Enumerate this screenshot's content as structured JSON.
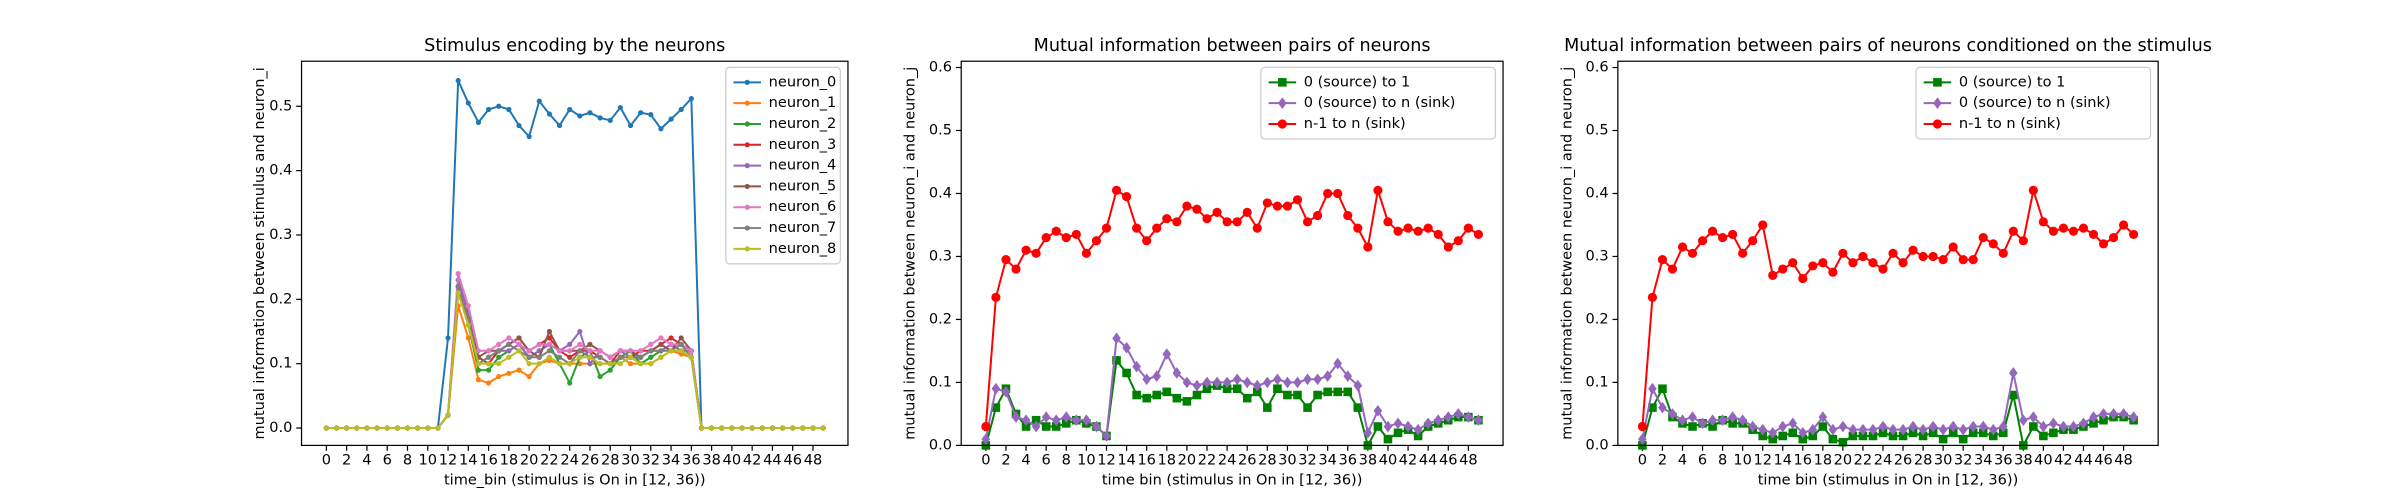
{
  "chart_data": [
    {
      "type": "line",
      "title": "Stimulus encoding by the neurons",
      "xlabel": "time_bin (stimulus is On in [12, 36))",
      "ylabel": "mutual information between stimulus and neuron_i",
      "x": [
        0,
        1,
        2,
        3,
        4,
        5,
        6,
        7,
        8,
        9,
        10,
        11,
        12,
        13,
        14,
        15,
        16,
        17,
        18,
        19,
        20,
        21,
        22,
        23,
        24,
        25,
        26,
        27,
        28,
        29,
        30,
        31,
        32,
        33,
        34,
        35,
        36,
        37,
        38,
        39,
        40,
        41,
        42,
        43,
        44,
        45,
        46,
        47,
        48,
        49
      ],
      "xlim": [
        -2.45,
        51.45
      ],
      "ylim": [
        -0.027,
        0.57
      ],
      "xticks": [
        0,
        2,
        4,
        6,
        8,
        10,
        12,
        14,
        16,
        18,
        20,
        22,
        24,
        26,
        28,
        30,
        32,
        34,
        36,
        38,
        40,
        42,
        44,
        46,
        48
      ],
      "yticks": [
        {
          "value": 0,
          "label": "0.0"
        },
        0.1,
        0.2,
        0.3,
        0.4,
        0.5
      ],
      "legend": "upper right",
      "series": [
        {
          "name": "neuron_0",
          "color": "#1f77b4",
          "marker": ".",
          "values": [
            0,
            0,
            0,
            0,
            0,
            0,
            0,
            0,
            0,
            0,
            0,
            0,
            0.14,
            0.54,
            0.505,
            0.475,
            0.495,
            0.5,
            0.495,
            0.47,
            0.453,
            0.508,
            0.488,
            0.47,
            0.495,
            0.485,
            0.49,
            0.482,
            0.478,
            0.498,
            0.47,
            0.49,
            0.487,
            0.465,
            0.48,
            0.495,
            0.512,
            0,
            0,
            0,
            0,
            0,
            0,
            0,
            0,
            0,
            0,
            0,
            0,
            0
          ]
        },
        {
          "name": "neuron_1",
          "color": "#ff7f0e",
          "marker": ".",
          "values": [
            0,
            0,
            0,
            0,
            0,
            0,
            0,
            0,
            0,
            0,
            0,
            0,
            0.02,
            0.19,
            0.14,
            0.075,
            0.07,
            0.08,
            0.085,
            0.09,
            0.08,
            0.1,
            0.105,
            0.1,
            0.1,
            0.1,
            0.1,
            0.1,
            0.1,
            0.11,
            0.1,
            0.1,
            0.1,
            0.11,
            0.12,
            0.115,
            0.11,
            0,
            0,
            0,
            0,
            0,
            0,
            0,
            0,
            0,
            0,
            0,
            0,
            0
          ]
        },
        {
          "name": "neuron_2",
          "color": "#2ca02c",
          "marker": ".",
          "values": [
            0,
            0,
            0,
            0,
            0,
            0,
            0,
            0,
            0,
            0,
            0,
            0,
            0.02,
            0.22,
            0.16,
            0.09,
            0.09,
            0.11,
            0.12,
            0.13,
            0.11,
            0.12,
            0.13,
            0.1,
            0.07,
            0.11,
            0.12,
            0.08,
            0.09,
            0.11,
            0.12,
            0.1,
            0.11,
            0.12,
            0.13,
            0.12,
            0.11,
            0,
            0,
            0,
            0,
            0,
            0,
            0,
            0,
            0,
            0,
            0,
            0,
            0
          ]
        },
        {
          "name": "neuron_3",
          "color": "#d62728",
          "marker": ".",
          "values": [
            0,
            0,
            0,
            0,
            0,
            0,
            0,
            0,
            0,
            0,
            0,
            0,
            0.02,
            0.21,
            0.17,
            0.11,
            0.1,
            0.12,
            0.13,
            0.14,
            0.12,
            0.13,
            0.14,
            0.12,
            0.11,
            0.12,
            0.12,
            0.11,
            0.1,
            0.12,
            0.11,
            0.12,
            0.12,
            0.13,
            0.14,
            0.13,
            0.12,
            0,
            0,
            0,
            0,
            0,
            0,
            0,
            0,
            0,
            0,
            0,
            0,
            0
          ]
        },
        {
          "name": "neuron_4",
          "color": "#9467bd",
          "marker": ".",
          "values": [
            0,
            0,
            0,
            0,
            0,
            0,
            0,
            0,
            0,
            0,
            0,
            0,
            0.02,
            0.23,
            0.18,
            0.1,
            0.11,
            0.12,
            0.12,
            0.13,
            0.11,
            0.12,
            0.13,
            0.12,
            0.13,
            0.15,
            0.1,
            0.12,
            0.11,
            0.12,
            0.11,
            0.11,
            0.12,
            0.12,
            0.13,
            0.12,
            0.12,
            0,
            0,
            0,
            0,
            0,
            0,
            0,
            0,
            0,
            0,
            0,
            0,
            0
          ]
        },
        {
          "name": "neuron_5",
          "color": "#8c564b",
          "marker": ".",
          "values": [
            0,
            0,
            0,
            0,
            0,
            0,
            0,
            0,
            0,
            0,
            0,
            0,
            0.02,
            0.22,
            0.17,
            0.11,
            0.12,
            0.12,
            0.13,
            0.14,
            0.12,
            0.11,
            0.15,
            0.12,
            0.12,
            0.12,
            0.13,
            0.12,
            0.11,
            0.12,
            0.12,
            0.11,
            0.12,
            0.13,
            0.12,
            0.14,
            0.12,
            0,
            0,
            0,
            0,
            0,
            0,
            0,
            0,
            0,
            0,
            0,
            0,
            0
          ]
        },
        {
          "name": "neuron_6",
          "color": "#e377c2",
          "marker": ".",
          "values": [
            0,
            0,
            0,
            0,
            0,
            0,
            0,
            0,
            0,
            0,
            0,
            0,
            0.02,
            0.24,
            0.19,
            0.12,
            0.12,
            0.13,
            0.14,
            0.13,
            0.12,
            0.13,
            0.13,
            0.12,
            0.12,
            0.13,
            0.12,
            0.12,
            0.11,
            0.12,
            0.12,
            0.12,
            0.13,
            0.14,
            0.13,
            0.13,
            0.12,
            0,
            0,
            0,
            0,
            0,
            0,
            0,
            0,
            0,
            0,
            0,
            0,
            0
          ]
        },
        {
          "name": "neuron_7",
          "color": "#7f7f7f",
          "marker": ".",
          "values": [
            0,
            0,
            0,
            0,
            0,
            0,
            0,
            0,
            0,
            0,
            0,
            0,
            0.02,
            0.22,
            0.17,
            0.1,
            0.11,
            0.12,
            0.13,
            0.12,
            0.11,
            0.11,
            0.12,
            0.11,
            0.1,
            0.12,
            0.11,
            0.11,
            0.1,
            0.11,
            0.11,
            0.11,
            0.12,
            0.12,
            0.12,
            0.13,
            0.11,
            0,
            0,
            0,
            0,
            0,
            0,
            0,
            0,
            0,
            0,
            0,
            0,
            0
          ]
        },
        {
          "name": "neuron_8",
          "color": "#bcbd22",
          "marker": ".",
          "values": [
            0,
            0,
            0,
            0,
            0,
            0,
            0,
            0,
            0,
            0,
            0,
            0,
            0.02,
            0.21,
            0.16,
            0.1,
            0.1,
            0.1,
            0.11,
            0.12,
            0.1,
            0.1,
            0.11,
            0.1,
            0.1,
            0.11,
            0.11,
            0.1,
            0.1,
            0.1,
            0.11,
            0.1,
            0.1,
            0.11,
            0.12,
            0.12,
            0.11,
            0,
            0,
            0,
            0,
            0,
            0,
            0,
            0,
            0,
            0,
            0,
            0,
            0
          ]
        }
      ]
    },
    {
      "type": "line",
      "title": "Mutual information between pairs of neurons",
      "xlabel": "time bin (stimulus in On in [12, 36))",
      "ylabel": "mutual information between neuron_i and neuron_j",
      "x": [
        0,
        1,
        2,
        3,
        4,
        5,
        6,
        7,
        8,
        9,
        10,
        11,
        12,
        13,
        14,
        15,
        16,
        17,
        18,
        19,
        20,
        21,
        22,
        23,
        24,
        25,
        26,
        27,
        28,
        29,
        30,
        31,
        32,
        33,
        34,
        35,
        36,
        37,
        38,
        39,
        40,
        41,
        42,
        43,
        44,
        45,
        46,
        47,
        48,
        49
      ],
      "xlim": [
        -2.45,
        51.45
      ],
      "ylim": [
        0,
        0.61
      ],
      "xticks": [
        0,
        2,
        4,
        6,
        8,
        10,
        12,
        14,
        16,
        18,
        20,
        22,
        24,
        26,
        28,
        30,
        32,
        34,
        36,
        38,
        40,
        42,
        44,
        46,
        48
      ],
      "yticks": [
        {
          "value": 0,
          "label": "0.0"
        },
        0.1,
        0.2,
        0.3,
        0.4,
        0.5,
        0.6
      ],
      "legend": "upper right",
      "series": [
        {
          "name": "0 (source) to 1",
          "color": "#008000",
          "marker": "s",
          "values": [
            0,
            0.06,
            0.09,
            0.05,
            0.03,
            0.04,
            0.03,
            0.03,
            0.035,
            0.04,
            0.035,
            0.03,
            0.015,
            0.135,
            0.115,
            0.08,
            0.075,
            0.08,
            0.085,
            0.075,
            0.07,
            0.08,
            0.09,
            0.095,
            0.09,
            0.09,
            0.075,
            0.085,
            0.06,
            0.09,
            0.08,
            0.08,
            0.06,
            0.08,
            0.085,
            0.085,
            0.085,
            0.06,
            0,
            0.03,
            0.01,
            0.02,
            0.025,
            0.015,
            0.03,
            0.035,
            0.04,
            0.045,
            0.045,
            0.04
          ]
        },
        {
          "name": "0 (source) to n (sink)",
          "color": "#9467bd",
          "marker": "D",
          "values": [
            0.01,
            0.09,
            0.085,
            0.045,
            0.04,
            0.03,
            0.045,
            0.04,
            0.045,
            0.04,
            0.04,
            0.03,
            0.015,
            0.17,
            0.155,
            0.125,
            0.105,
            0.11,
            0.145,
            0.115,
            0.1,
            0.095,
            0.1,
            0.1,
            0.1,
            0.105,
            0.1,
            0.095,
            0.1,
            0.105,
            0.1,
            0.1,
            0.105,
            0.105,
            0.11,
            0.13,
            0.11,
            0.095,
            0.02,
            0.055,
            0.03,
            0.035,
            0.03,
            0.025,
            0.035,
            0.04,
            0.045,
            0.05,
            0.045,
            0.04
          ]
        },
        {
          "name": "n-1 to n (sink)",
          "color": "#ff0000",
          "marker": "o",
          "values": [
            0.03,
            0.235,
            0.295,
            0.28,
            0.31,
            0.305,
            0.33,
            0.34,
            0.33,
            0.335,
            0.305,
            0.325,
            0.345,
            0.405,
            0.395,
            0.345,
            0.325,
            0.345,
            0.36,
            0.355,
            0.38,
            0.375,
            0.36,
            0.37,
            0.355,
            0.355,
            0.37,
            0.345,
            0.385,
            0.38,
            0.38,
            0.39,
            0.355,
            0.365,
            0.4,
            0.4,
            0.365,
            0.345,
            0.315,
            0.405,
            0.355,
            0.34,
            0.345,
            0.34,
            0.345,
            0.335,
            0.315,
            0.325,
            0.345,
            0.335
          ]
        }
      ]
    },
    {
      "type": "line",
      "title": "Mutual information between pairs of neurons conditioned on the stimulus",
      "xlabel": "time bin (stimulus in On in [12, 36))",
      "ylabel": "mutual information between neuron_i and neuron_j",
      "x": [
        0,
        1,
        2,
        3,
        4,
        5,
        6,
        7,
        8,
        9,
        10,
        11,
        12,
        13,
        14,
        15,
        16,
        17,
        18,
        19,
        20,
        21,
        22,
        23,
        24,
        25,
        26,
        27,
        28,
        29,
        30,
        31,
        32,
        33,
        34,
        35,
        36,
        37,
        38,
        39,
        40,
        41,
        42,
        43,
        44,
        45,
        46,
        47,
        48,
        49
      ],
      "xlim": [
        -2.45,
        51.45
      ],
      "ylim": [
        0,
        0.61
      ],
      "xticks": [
        0,
        2,
        4,
        6,
        8,
        10,
        12,
        14,
        16,
        18,
        20,
        22,
        24,
        26,
        28,
        30,
        32,
        34,
        36,
        38,
        40,
        42,
        44,
        46,
        48
      ],
      "yticks": [
        {
          "value": 0,
          "label": "0.0"
        },
        0.1,
        0.2,
        0.3,
        0.4,
        0.5,
        0.6
      ],
      "legend": "upper right",
      "series": [
        {
          "name": "0 (source) to 1",
          "color": "#008000",
          "marker": "s",
          "values": [
            0,
            0.06,
            0.09,
            0.045,
            0.035,
            0.03,
            0.035,
            0.03,
            0.04,
            0.035,
            0.035,
            0.025,
            0.015,
            0.01,
            0.015,
            0.02,
            0.01,
            0.015,
            0.03,
            0.01,
            0.005,
            0.015,
            0.015,
            0.015,
            0.02,
            0.015,
            0.015,
            0.02,
            0.015,
            0.02,
            0.01,
            0.02,
            0.01,
            0.02,
            0.02,
            0.015,
            0.02,
            0.08,
            0,
            0.03,
            0.015,
            0.02,
            0.025,
            0.025,
            0.03,
            0.035,
            0.04,
            0.045,
            0.045,
            0.04
          ]
        },
        {
          "name": "0 (source) to n (sink)",
          "color": "#9467bd",
          "marker": "D",
          "values": [
            0.01,
            0.09,
            0.06,
            0.05,
            0.04,
            0.045,
            0.035,
            0.04,
            0.04,
            0.045,
            0.04,
            0.03,
            0.025,
            0.02,
            0.03,
            0.035,
            0.02,
            0.025,
            0.045,
            0.025,
            0.03,
            0.025,
            0.025,
            0.025,
            0.03,
            0.025,
            0.025,
            0.03,
            0.025,
            0.03,
            0.025,
            0.03,
            0.025,
            0.03,
            0.03,
            0.025,
            0.03,
            0.115,
            0.04,
            0.045,
            0.03,
            0.035,
            0.03,
            0.03,
            0.035,
            0.045,
            0.05,
            0.05,
            0.05,
            0.045
          ]
        },
        {
          "name": "n-1 to n (sink)",
          "color": "#ff0000",
          "marker": "o",
          "values": [
            0.03,
            0.235,
            0.295,
            0.28,
            0.315,
            0.305,
            0.325,
            0.34,
            0.33,
            0.335,
            0.305,
            0.325,
            0.35,
            0.27,
            0.28,
            0.29,
            0.265,
            0.285,
            0.29,
            0.275,
            0.305,
            0.29,
            0.3,
            0.29,
            0.28,
            0.305,
            0.29,
            0.31,
            0.3,
            0.3,
            0.295,
            0.315,
            0.295,
            0.295,
            0.33,
            0.32,
            0.305,
            0.34,
            0.325,
            0.405,
            0.355,
            0.34,
            0.345,
            0.34,
            0.345,
            0.335,
            0.32,
            0.33,
            0.35,
            0.335
          ]
        }
      ]
    }
  ]
}
